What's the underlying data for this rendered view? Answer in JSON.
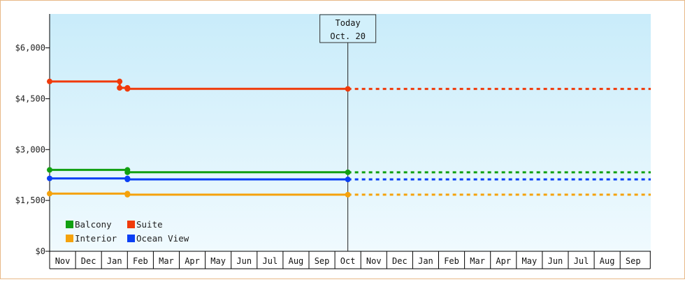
{
  "chart_data": {
    "type": "line",
    "title": "",
    "xlabel": "",
    "ylabel": "",
    "ylim": [
      0,
      7000
    ],
    "yticks": [
      0,
      1500,
      3000,
      4500,
      6000
    ],
    "ytick_labels": [
      "$0",
      "$1,500",
      "$3,000",
      "$4,500",
      "$6,000"
    ],
    "months": [
      "Nov",
      "Dec",
      "Jan",
      "Feb",
      "Mar",
      "Apr",
      "May",
      "Jun",
      "Jul",
      "Aug",
      "Sep",
      "Oct",
      "Nov",
      "Dec",
      "Jan",
      "Feb",
      "Mar",
      "Apr",
      "May",
      "Jun",
      "Jul",
      "Aug",
      "Sep"
    ],
    "today_label": [
      "Today",
      "Oct. 20"
    ],
    "today_month_index": 11.5,
    "grid": false,
    "legend_position": "bottom-left",
    "series": [
      {
        "name": "Balcony",
        "color": "#11a011",
        "points": [
          [
            0.0,
            2400
          ],
          [
            3.0,
            2400
          ],
          [
            3.0,
            2330
          ],
          [
            11.5,
            2330
          ]
        ],
        "forecast": 2330
      },
      {
        "name": "Suite",
        "color": "#f03a0a",
        "points": [
          [
            0.0,
            5010
          ],
          [
            2.7,
            5010
          ],
          [
            2.7,
            4820
          ],
          [
            3.0,
            4820
          ],
          [
            3.0,
            4790
          ],
          [
            11.5,
            4790
          ]
        ],
        "forecast": 4790
      },
      {
        "name": "Interior",
        "color": "#f5a20c",
        "points": [
          [
            0.0,
            1700
          ],
          [
            3.0,
            1700
          ],
          [
            3.0,
            1670
          ],
          [
            11.5,
            1670
          ]
        ],
        "forecast": 1670
      },
      {
        "name": "Ocean View",
        "color": "#0a3ff5",
        "points": [
          [
            0.0,
            2150
          ],
          [
            3.0,
            2150
          ],
          [
            3.0,
            2120
          ],
          [
            11.5,
            2120
          ]
        ],
        "forecast": 2120
      }
    ]
  }
}
